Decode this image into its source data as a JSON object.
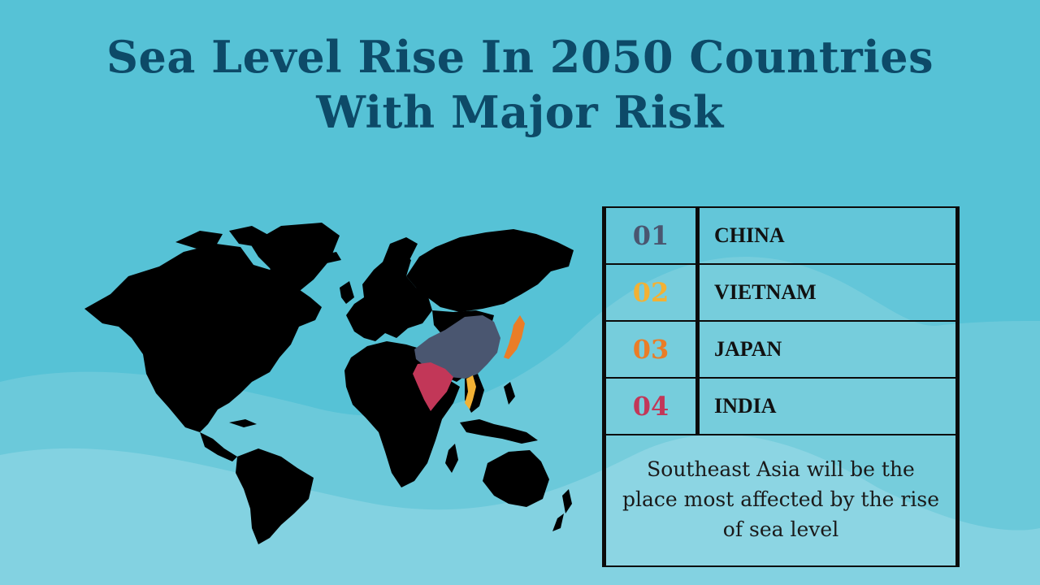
{
  "title": {
    "line1": "Sea Level Rise In 2050 Countries",
    "line2": "With Major Risk"
  },
  "map": {
    "highlights": [
      {
        "country": "China",
        "color": "#4a5670"
      },
      {
        "country": "Vietnam",
        "color": "#f2b134"
      },
      {
        "country": "Japan",
        "color": "#ea7d27"
      },
      {
        "country": "India",
        "color": "#c23758"
      }
    ]
  },
  "ranking": {
    "rows": [
      {
        "number": "01",
        "country": "CHINA",
        "color": "#4a5670"
      },
      {
        "number": "02",
        "country": "VIETNAM",
        "color": "#f2b134"
      },
      {
        "number": "03",
        "country": "JAPAN",
        "color": "#ea7d27"
      },
      {
        "number": "04",
        "country": "INDIA",
        "color": "#c23758"
      }
    ],
    "note": "Southeast Asia will be the place most affected by the rise of sea level"
  },
  "colors": {
    "background": "#56c2d6",
    "wave": "#8dd6e4",
    "title": "#0d4a68",
    "land": "#000000"
  }
}
